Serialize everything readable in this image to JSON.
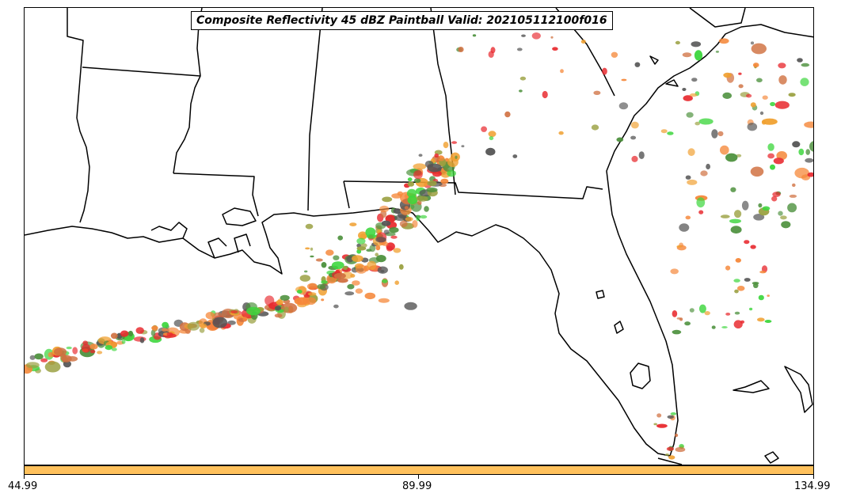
{
  "title": "Composite Reflectivity 45 dBZ Paintball Valid: 202105112100f016",
  "colorbar": {
    "color": "#ffc15c",
    "ticks": [
      "44.99",
      "89.99",
      "134.99"
    ]
  },
  "paintball_colors": [
    "#e8282d",
    "#f5883a",
    "#f0a030",
    "#3dd63d",
    "#4a8f3a",
    "#9aa040",
    "#555555",
    "#d07040"
  ]
}
